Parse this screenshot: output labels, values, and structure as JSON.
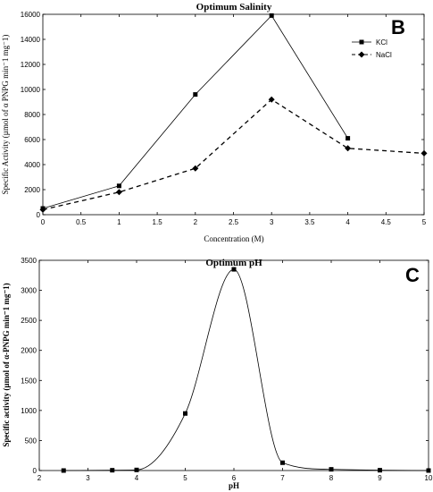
{
  "chart_data": [
    {
      "type": "line",
      "panel_label": "B",
      "title": "Optimum Salinity",
      "xlabel": "Concentration (M)",
      "ylabel": "Specific Activity (µmol of α PNPG min⁻1 mg⁻1)",
      "xlim": [
        0,
        5
      ],
      "ylim": [
        0,
        16000
      ],
      "xticks": [
        0,
        0.5,
        1,
        1.5,
        2,
        2.5,
        3,
        3.5,
        4,
        4.5,
        5
      ],
      "yticks": [
        0,
        2000,
        4000,
        6000,
        8000,
        10000,
        12000,
        14000,
        16000
      ],
      "legend_position": "top-right",
      "series": [
        {
          "name": "KCl",
          "style": "solid",
          "marker": "square",
          "x": [
            0,
            1,
            2,
            3,
            4
          ],
          "values": [
            500,
            2300,
            9600,
            15900,
            6100
          ]
        },
        {
          "name": "NaCl",
          "style": "dashed",
          "marker": "diamond",
          "x": [
            0,
            1,
            2,
            3,
            4,
            5
          ],
          "values": [
            400,
            1800,
            3700,
            9200,
            5300,
            4900
          ]
        }
      ]
    },
    {
      "type": "line",
      "panel_label": "C",
      "title": "Optimum pH",
      "xlabel": "pH",
      "ylabel": "Specific activity (µmol of α-PNPG min⁻1 mg⁻1)",
      "xlim": [
        2,
        10
      ],
      "ylim": [
        0,
        3500
      ],
      "xticks": [
        2,
        3,
        4,
        5,
        6,
        7,
        8,
        9,
        10
      ],
      "yticks": [
        0,
        500,
        1000,
        1500,
        2000,
        2500,
        3000,
        3500
      ],
      "series": [
        {
          "name": "",
          "style": "solid",
          "marker": "square",
          "smooth": true,
          "x": [
            2.5,
            3.5,
            4,
            5,
            6,
            7,
            8,
            9,
            10
          ],
          "values": [
            0,
            5,
            10,
            950,
            3350,
            130,
            20,
            5,
            0
          ]
        }
      ]
    }
  ]
}
